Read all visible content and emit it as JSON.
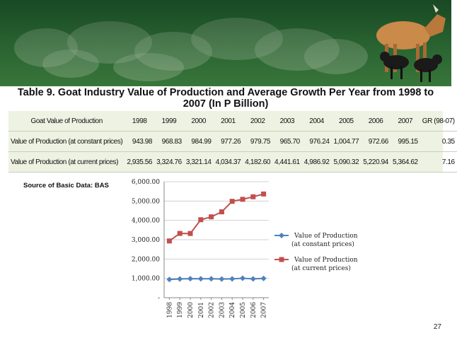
{
  "title": "Table 9. Goat Industry Value of Production and Average Growth Per Year from 1998 to 2007 (In P Billion)",
  "table": {
    "header": [
      "Goat Value of Production",
      "1998",
      "1999",
      "2000",
      "2001",
      "2002",
      "2003",
      "2004",
      "2005",
      "2006",
      "2007",
      "GR (98-07)"
    ],
    "rows": [
      [
        "Value of Production (at constant prices)",
        "943.98",
        "968.83",
        "984.99",
        "977.26",
        "979.75",
        "965.70",
        "976.24",
        "1,004.77",
        "972.66",
        "995.15",
        "0.35"
      ],
      [
        "Value of Production (at current prices)",
        "2,935.56",
        "3,324.76",
        "3,321.14",
        "4,034.37",
        "4,182.60",
        "4,441.61",
        "4,986.92",
        "5,090.32",
        "5,220.94",
        "5,364.62",
        "7.16"
      ]
    ]
  },
  "source": "Source of Basic Data: BAS",
  "page_number": "27",
  "chart_data": {
    "type": "line",
    "categories": [
      "1998",
      "1999",
      "2000",
      "2001",
      "2002",
      "2003",
      "2004",
      "2005",
      "2006",
      "2007"
    ],
    "y_ticks": [
      "-",
      "1,000.00",
      "2,000.00",
      "3,000.00",
      "4,000.00",
      "5,000.00",
      "6,000.00"
    ],
    "ylim": [
      0,
      6000
    ],
    "grid": true,
    "legend_position": "right",
    "series": [
      {
        "name": [
          "Value of Production",
          "(at constant prices)"
        ],
        "color": "#4f81bd",
        "marker": "diamond",
        "values": [
          943.98,
          968.83,
          984.99,
          977.26,
          979.75,
          965.7,
          976.24,
          1004.77,
          972.66,
          995.15
        ]
      },
      {
        "name": [
          "Value of Production",
          "(at current prices)"
        ],
        "color": "#c0504d",
        "marker": "square",
        "values": [
          2935.56,
          3324.76,
          3321.14,
          4034.37,
          4182.6,
          4441.61,
          4986.92,
          5090.32,
          5220.94,
          5364.62
        ]
      }
    ]
  }
}
